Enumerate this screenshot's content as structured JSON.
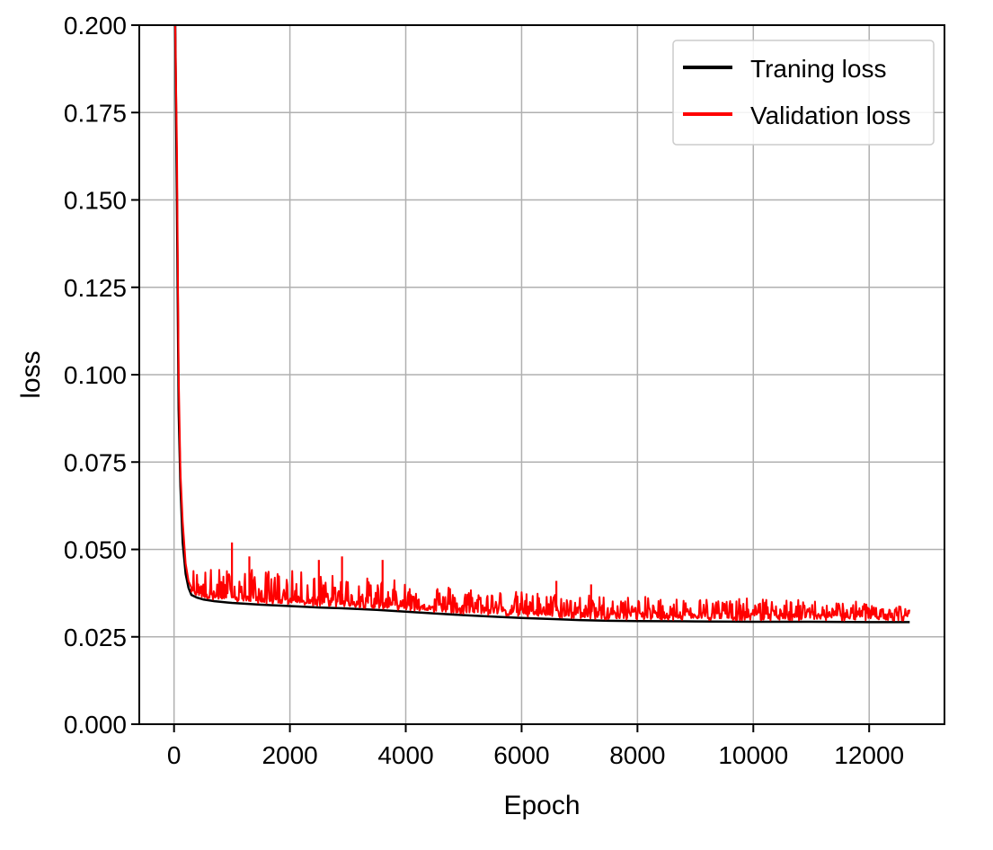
{
  "chart_data": {
    "type": "line",
    "title": "",
    "xlabel": "Epoch",
    "ylabel": "loss",
    "xlim": [
      -600,
      13300
    ],
    "ylim": [
      0.0,
      0.2
    ],
    "xticks": [
      0,
      2000,
      4000,
      6000,
      8000,
      10000,
      12000
    ],
    "xtick_labels": [
      "0",
      "2000",
      "4000",
      "6000",
      "8000",
      "10000",
      "12000"
    ],
    "yticks": [
      0.0,
      0.025,
      0.05,
      0.075,
      0.1,
      0.125,
      0.15,
      0.175,
      0.2
    ],
    "ytick_labels": [
      "0.000",
      "0.025",
      "0.050",
      "0.075",
      "0.100",
      "0.125",
      "0.150",
      "0.175",
      "0.200"
    ],
    "grid": true,
    "legend_position": "top-right",
    "series": [
      {
        "name": "Traning loss",
        "color": "#000000",
        "x": [
          20,
          50,
          80,
          110,
          150,
          200,
          250,
          300,
          400,
          500,
          700,
          1000,
          1500,
          2000,
          2500,
          3000,
          3500,
          4000,
          4500,
          5000,
          5500,
          6000,
          6500,
          7000,
          7500,
          8000,
          9000,
          10000,
          11000,
          12000,
          12700
        ],
        "y": [
          0.2,
          0.15,
          0.09,
          0.068,
          0.052,
          0.043,
          0.039,
          0.037,
          0.0362,
          0.0357,
          0.0352,
          0.0347,
          0.0342,
          0.0338,
          0.0334,
          0.0331,
          0.0327,
          0.0322,
          0.0317,
          0.0312,
          0.0308,
          0.0304,
          0.0301,
          0.0298,
          0.0296,
          0.0295,
          0.0294,
          0.0293,
          0.0293,
          0.0292,
          0.0292
        ]
      },
      {
        "name": "Validation loss",
        "color": "#ff0000",
        "x": [
          20,
          50,
          80,
          110,
          150,
          200,
          250,
          300,
          400,
          500,
          700,
          1000,
          1500,
          2000,
          2500,
          3000,
          3500,
          4000,
          4500,
          5000,
          5500,
          6000,
          6500,
          7000,
          7500,
          8000,
          9000,
          10000,
          11000,
          12000,
          12700
        ],
        "y": [
          0.2,
          0.165,
          0.1,
          0.072,
          0.058,
          0.046,
          0.041,
          0.039,
          0.038,
          0.0375,
          0.037,
          0.0365,
          0.036,
          0.0357,
          0.0355,
          0.0352,
          0.0348,
          0.0342,
          0.0338,
          0.0334,
          0.033,
          0.0327,
          0.0324,
          0.0322,
          0.032,
          0.0318,
          0.0316,
          0.0315,
          0.0315,
          0.0314,
          0.0314
        ],
        "noise_upper_envelope": {
          "x": [
            300,
            2000,
            4000,
            6000,
            8000,
            10000,
            12000,
            12700
          ],
          "y": [
            0.045,
            0.044,
            0.041,
            0.038,
            0.0365,
            0.036,
            0.035,
            0.034
          ]
        },
        "spikes": [
          {
            "x": 1000,
            "y": 0.052
          },
          {
            "x": 1300,
            "y": 0.048
          },
          {
            "x": 2500,
            "y": 0.047
          },
          {
            "x": 2900,
            "y": 0.048
          },
          {
            "x": 3600,
            "y": 0.047
          },
          {
            "x": 6600,
            "y": 0.041
          },
          {
            "x": 7200,
            "y": 0.04
          }
        ]
      }
    ]
  }
}
